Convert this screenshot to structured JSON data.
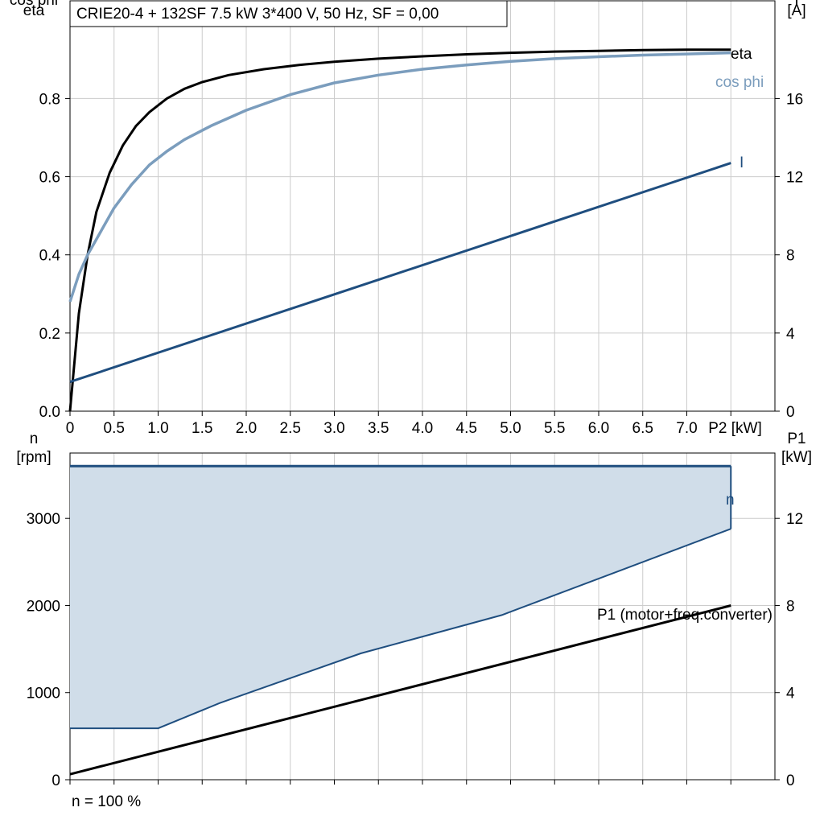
{
  "colors": {
    "eta": "#000000",
    "cos_phi": "#7b9dbd",
    "current": "#1f4e7f",
    "speed": "#1f4e7f",
    "range_fill": "#d0dde9",
    "p1": "#000000",
    "grid": "#cccccc"
  },
  "footer_note": "n = 100 %",
  "chart_data": [
    {
      "type": "line",
      "title": "CRIE20-4 + 132SF   7.5 kW   3*400 V, 50 Hz, SF = 0,00",
      "xlabel": "P2 [kW]",
      "ylabel_left_1": "cos phi",
      "ylabel_left_2": "eta",
      "ylabel_right_1": "I",
      "ylabel_right_2": "[A]",
      "xlim": [
        0,
        8
      ],
      "ylim_left": [
        0,
        1.05
      ],
      "ylim_right": [
        0,
        21
      ],
      "grid": true,
      "x_ticks": [
        "0",
        "0.5",
        "1.0",
        "1.5",
        "2.0",
        "2.5",
        "3.0",
        "3.5",
        "4.0",
        "4.5",
        "5.0",
        "5.5",
        "6.0",
        "6.5",
        "7.0"
      ],
      "y_left_ticks": [
        "0.0",
        "0.2",
        "0.4",
        "0.6",
        "0.8"
      ],
      "y_right_ticks": [
        "0",
        "4",
        "8",
        "12",
        "16"
      ],
      "series": [
        {
          "name": "eta",
          "axis": "left",
          "x": [
            0,
            0.1,
            0.2,
            0.3,
            0.45,
            0.6,
            0.75,
            0.9,
            1.1,
            1.3,
            1.5,
            1.8,
            2.2,
            2.6,
            3.0,
            3.5,
            4.0,
            4.5,
            5.0,
            5.5,
            6.0,
            6.5,
            7.0,
            7.5
          ],
          "y": [
            0.0,
            0.25,
            0.4,
            0.51,
            0.61,
            0.68,
            0.73,
            0.765,
            0.8,
            0.825,
            0.842,
            0.86,
            0.875,
            0.886,
            0.894,
            0.902,
            0.908,
            0.913,
            0.917,
            0.92,
            0.922,
            0.924,
            0.925,
            0.925
          ]
        },
        {
          "name": "cos phi",
          "axis": "left",
          "x": [
            0,
            0.1,
            0.2,
            0.35,
            0.5,
            0.7,
            0.9,
            1.1,
            1.3,
            1.6,
            2.0,
            2.5,
            3.0,
            3.5,
            4.0,
            4.5,
            5.0,
            5.5,
            6.0,
            6.5,
            7.0,
            7.5
          ],
          "y": [
            0.28,
            0.35,
            0.4,
            0.46,
            0.52,
            0.58,
            0.63,
            0.665,
            0.695,
            0.73,
            0.77,
            0.81,
            0.84,
            0.86,
            0.875,
            0.886,
            0.895,
            0.902,
            0.907,
            0.911,
            0.914,
            0.917
          ]
        },
        {
          "name": "I",
          "axis": "right",
          "x": [
            0,
            7.5
          ],
          "y": [
            1.5,
            12.7
          ]
        }
      ]
    },
    {
      "type": "area",
      "xlabel": "",
      "ylabel_left_1": "n",
      "ylabel_left_2": "[rpm]",
      "ylabel_right_1": "P1",
      "ylabel_right_2": "[kW]",
      "xlim": [
        0,
        8
      ],
      "ylim_left": [
        0,
        3750
      ],
      "ylim_right": [
        0,
        15
      ],
      "grid": true,
      "y_left_ticks": [
        "0",
        "1000",
        "2000",
        "3000"
      ],
      "y_right_ticks": [
        "0",
        "4",
        "8",
        "12"
      ],
      "series": [
        {
          "name": "n",
          "axis": "left",
          "role": "speed range",
          "upper_x": [
            0,
            7.5
          ],
          "upper_y": [
            3600,
            3600
          ],
          "lower_x": [
            0,
            1.0,
            1.7,
            3.3,
            4.9,
            7.5
          ],
          "lower_y": [
            590,
            590,
            880,
            1450,
            1890,
            2880
          ]
        },
        {
          "name": "P1 (motor+freq.converter)",
          "axis": "right",
          "x": [
            0,
            7.5
          ],
          "y": [
            0.25,
            8.0
          ]
        }
      ]
    }
  ]
}
